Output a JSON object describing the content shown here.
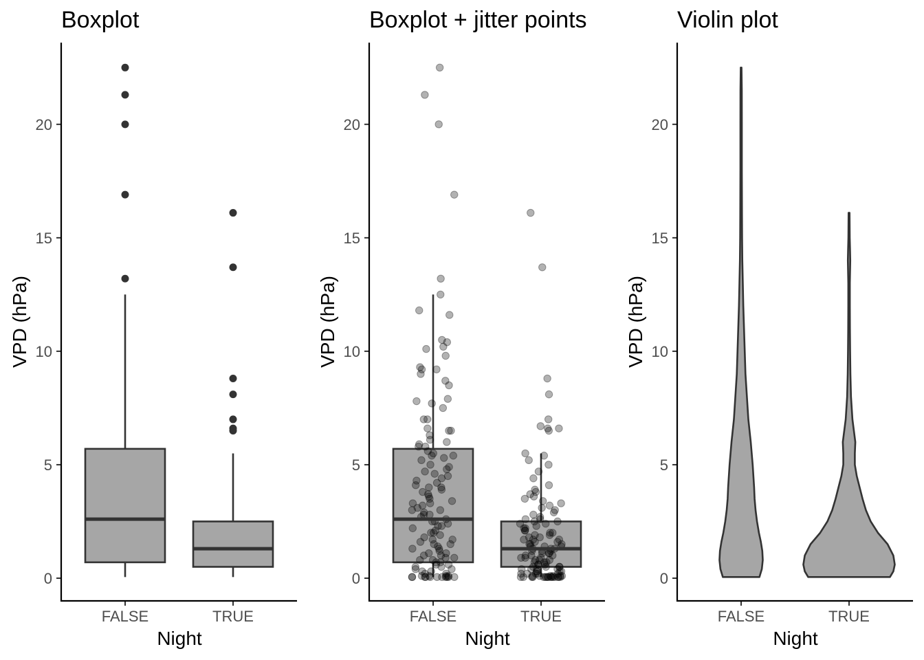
{
  "chart_data": [
    {
      "type": "boxplot",
      "title": "Boxplot",
      "xlabel": "Night",
      "ylabel": "VPD (hPa)",
      "categories": [
        "FALSE",
        "TRUE"
      ],
      "ylim": [
        -1,
        23.6
      ],
      "yticks": [
        0,
        5,
        10,
        15,
        20
      ],
      "grid": false,
      "fill_color": "#a6a6a6",
      "line_color": "#333333",
      "boxes": [
        {
          "category": "FALSE",
          "whisker_low": 0.05,
          "q1": 0.7,
          "median": 2.6,
          "q3": 5.7,
          "whisker_high": 12.5,
          "outliers": [
            13.2,
            16.9,
            20.0,
            21.3,
            22.5
          ]
        },
        {
          "category": "TRUE",
          "whisker_low": 0.05,
          "q1": 0.5,
          "median": 1.3,
          "q3": 2.5,
          "whisker_high": 5.5,
          "outliers": [
            6.5,
            6.6,
            7.0,
            8.1,
            8.8,
            13.7,
            16.1
          ]
        }
      ]
    },
    {
      "type": "boxplot",
      "title": "Boxplot + jitter points",
      "xlabel": "Night",
      "ylabel": "VPD (hPa)",
      "categories": [
        "FALSE",
        "TRUE"
      ],
      "ylim": [
        -1,
        23.6
      ],
      "yticks": [
        0,
        5,
        10,
        15,
        20
      ],
      "grid": false,
      "fill_color": "#a6a6a6",
      "line_color": "#333333",
      "boxes": [
        {
          "category": "FALSE",
          "whisker_low": 0.05,
          "q1": 0.7,
          "median": 2.6,
          "q3": 5.7,
          "whisker_high": 12.5,
          "outliers": []
        },
        {
          "category": "TRUE",
          "whisker_low": 0.05,
          "q1": 0.5,
          "median": 1.3,
          "q3": 2.5,
          "whisker_high": 5.5,
          "outliers": []
        }
      ],
      "jitter_points": {
        "FALSE": [
          22.5,
          21.3,
          20.0,
          16.9,
          13.2,
          12.5,
          11.8,
          11.6,
          10.5,
          10.4,
          10.2,
          10.1,
          9.8,
          9.3,
          9.2,
          9.2,
          9.0,
          8.7,
          8.5,
          7.9,
          7.8,
          7.7,
          7.5,
          7.0,
          7.0,
          6.6,
          6.5,
          6.5,
          6.3,
          6.1,
          6.0,
          5.9,
          5.8,
          5.8,
          5.6,
          5.5,
          5.4,
          5.4,
          5.3,
          5.2,
          5.0,
          4.9,
          4.8,
          4.7,
          4.6,
          4.5,
          4.4,
          4.3,
          4.2,
          4.1,
          4.0,
          4.0,
          3.9,
          3.8,
          3.7,
          3.6,
          3.5,
          3.4,
          3.3,
          3.3,
          3.2,
          3.1,
          3.0,
          3.0,
          2.9,
          2.8,
          2.8,
          2.7,
          2.6,
          2.5,
          2.5,
          2.4,
          2.3,
          2.3,
          2.2,
          2.1,
          2.0,
          2.0,
          1.9,
          1.8,
          1.7,
          1.7,
          1.6,
          1.5,
          1.5,
          1.4,
          1.3,
          1.3,
          1.2,
          1.1,
          1.1,
          1.0,
          1.0,
          0.9,
          0.9,
          0.8,
          0.8,
          0.7,
          0.7,
          0.6,
          0.6,
          0.5,
          0.5,
          0.4,
          0.4,
          0.3,
          0.3,
          0.2,
          0.2,
          0.1,
          0.1,
          0.1,
          0.1,
          0.05,
          0.05,
          0.05,
          0.05,
          0.05,
          0.05,
          0.05,
          0.05,
          0.05,
          0.05,
          0.05
        ],
        "TRUE": [
          16.1,
          13.7,
          8.8,
          8.1,
          7.0,
          6.7,
          6.6,
          6.6,
          6.5,
          5.5,
          5.4,
          5.2,
          5.0,
          4.7,
          4.4,
          4.1,
          3.9,
          3.8,
          3.7,
          3.6,
          3.5,
          3.4,
          3.3,
          3.2,
          3.1,
          3.0,
          2.9,
          2.8,
          2.7,
          2.6,
          2.6,
          2.5,
          2.5,
          2.4,
          2.4,
          2.3,
          2.2,
          2.2,
          2.1,
          2.1,
          2.0,
          2.0,
          1.9,
          1.9,
          1.8,
          1.8,
          1.7,
          1.7,
          1.7,
          1.6,
          1.6,
          1.5,
          1.5,
          1.5,
          1.4,
          1.4,
          1.4,
          1.3,
          1.3,
          1.3,
          1.2,
          1.2,
          1.2,
          1.1,
          1.1,
          1.1,
          1.0,
          1.0,
          1.0,
          0.9,
          0.9,
          0.9,
          0.8,
          0.8,
          0.8,
          0.7,
          0.7,
          0.7,
          0.6,
          0.6,
          0.6,
          0.5,
          0.5,
          0.5,
          0.5,
          0.4,
          0.4,
          0.4,
          0.4,
          0.3,
          0.3,
          0.3,
          0.3,
          0.2,
          0.2,
          0.2,
          0.2,
          0.2,
          0.1,
          0.1,
          0.1,
          0.1,
          0.1,
          0.1,
          0.05,
          0.05,
          0.05,
          0.05,
          0.05,
          0.05,
          0.05,
          0.05,
          0.05,
          0.05,
          0.05,
          0.05,
          0.05,
          0.05,
          0.05,
          0.05
        ],
        "color": "#000000",
        "opacity": 0.3
      }
    },
    {
      "type": "violin",
      "title": "Violin plot",
      "xlabel": "Night",
      "ylabel": "VPD (hPa)",
      "categories": [
        "FALSE",
        "TRUE"
      ],
      "ylim": [
        -1,
        23.6
      ],
      "yticks": [
        0,
        5,
        10,
        15,
        20
      ],
      "grid": false,
      "fill_color": "#a6a6a6",
      "line_color": "#333333",
      "violins": [
        {
          "category": "FALSE",
          "profile": [
            [
              0.05,
              0.38
            ],
            [
              0.4,
              0.43
            ],
            [
              0.8,
              0.45
            ],
            [
              1.2,
              0.44
            ],
            [
              1.6,
              0.41
            ],
            [
              2.0,
              0.37
            ],
            [
              2.5,
              0.33
            ],
            [
              3.0,
              0.3
            ],
            [
              3.5,
              0.28
            ],
            [
              4.0,
              0.27
            ],
            [
              5.0,
              0.24
            ],
            [
              6.0,
              0.2
            ],
            [
              7.0,
              0.15
            ],
            [
              8.0,
              0.12
            ],
            [
              9.0,
              0.09
            ],
            [
              10.0,
              0.075
            ],
            [
              11.0,
              0.06
            ],
            [
              12.0,
              0.045
            ],
            [
              13.0,
              0.035
            ],
            [
              14.0,
              0.025
            ],
            [
              15.0,
              0.02
            ],
            [
              16.0,
              0.018
            ],
            [
              18.0,
              0.015
            ],
            [
              20.0,
              0.015
            ],
            [
              21.5,
              0.014
            ],
            [
              22.5,
              0.008
            ]
          ]
        },
        {
          "category": "TRUE",
          "profile": [
            [
              0.05,
              0.85
            ],
            [
              0.3,
              0.92
            ],
            [
              0.6,
              0.95
            ],
            [
              1.0,
              0.92
            ],
            [
              1.5,
              0.8
            ],
            [
              2.0,
              0.6
            ],
            [
              2.5,
              0.45
            ],
            [
              3.0,
              0.35
            ],
            [
              3.5,
              0.28
            ],
            [
              4.0,
              0.22
            ],
            [
              4.5,
              0.16
            ],
            [
              5.0,
              0.12
            ],
            [
              5.5,
              0.12
            ],
            [
              6.0,
              0.13
            ],
            [
              6.5,
              0.1
            ],
            [
              7.0,
              0.07
            ],
            [
              8.0,
              0.04
            ],
            [
              9.0,
              0.028
            ],
            [
              10.0,
              0.022
            ],
            [
              11.0,
              0.018
            ],
            [
              12.0,
              0.016
            ],
            [
              13.0,
              0.016
            ],
            [
              14.0,
              0.025
            ],
            [
              14.5,
              0.02
            ],
            [
              15.0,
              0.014
            ],
            [
              16.1,
              0.01
            ]
          ]
        }
      ]
    }
  ]
}
